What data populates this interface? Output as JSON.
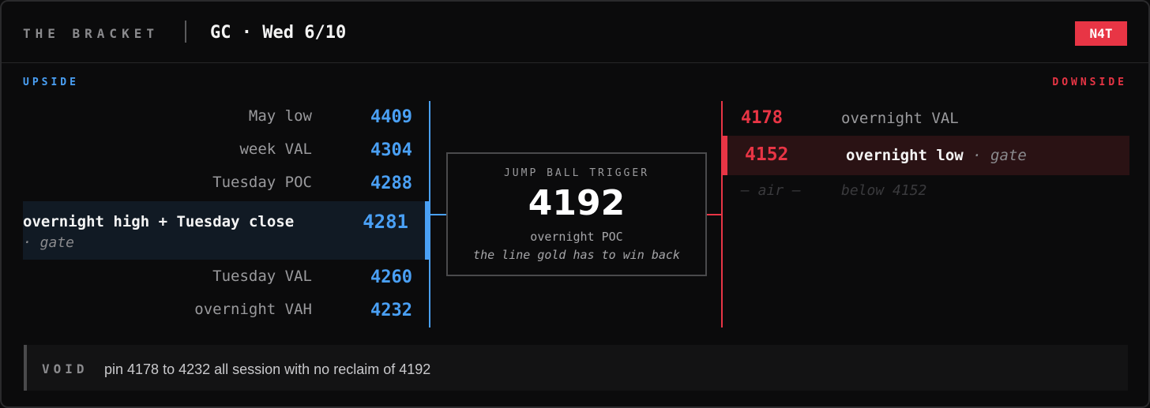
{
  "header": {
    "brand": "THE BRACKET",
    "symbol": "GC · Wed 6/10",
    "badge": "N4T"
  },
  "upside": {
    "label": "UPSIDE",
    "levels": [
      {
        "label": "May low",
        "value": "4409"
      },
      {
        "label": "week VAL",
        "value": "4304"
      },
      {
        "label": "Tuesday POC",
        "value": "4288"
      },
      {
        "label": "overnight high + Tuesday close",
        "note": "· gate",
        "value": "4281"
      },
      {
        "label": "Tuesday VAL",
        "value": "4260"
      },
      {
        "label": "overnight VAH",
        "value": "4232"
      }
    ]
  },
  "trigger": {
    "label": "JUMP BALL TRIGGER",
    "value": "4192",
    "subtitle": "overnight POC",
    "note": "the line gold has to win back"
  },
  "downside": {
    "label": "DOWNSIDE",
    "levels": [
      {
        "label": "overnight VAL",
        "value": "4178"
      },
      {
        "label": "overnight low",
        "note": "· gate",
        "value": "4152"
      }
    ],
    "air_marker": "— air —",
    "air_label": "below 4152"
  },
  "void": {
    "label": "VOID",
    "text": "pin 4178 to 4232 all session with no reclaim of 4192"
  },
  "colors": {
    "upside": "#4aa0f5",
    "downside": "#e83545",
    "badge": "#e83545"
  }
}
